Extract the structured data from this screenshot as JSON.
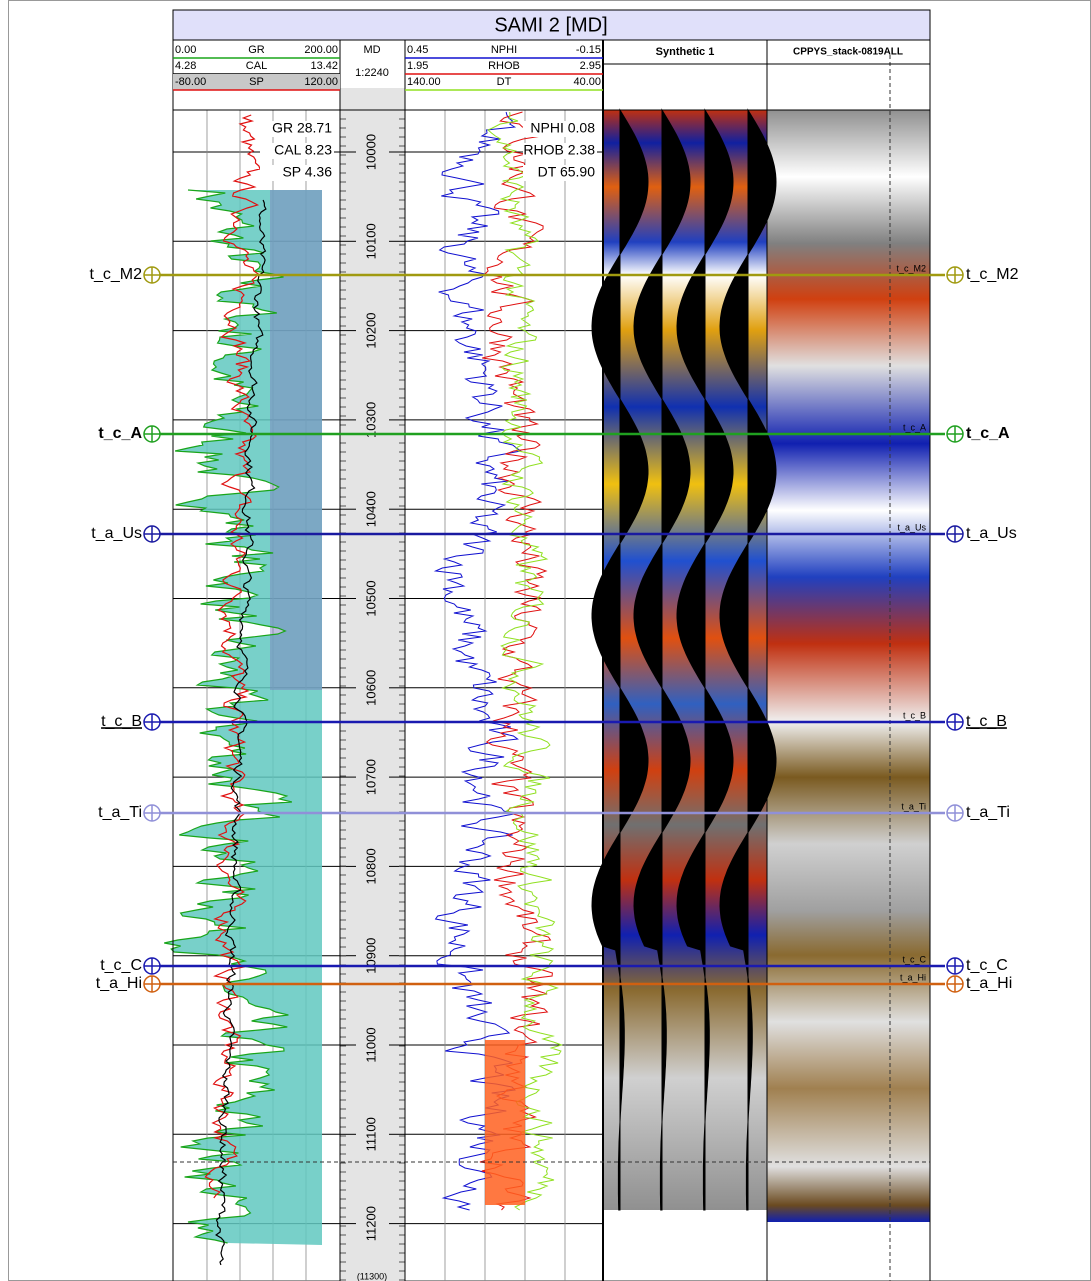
{
  "title": "SAMI 2 [MD]",
  "gr_track": {
    "curves": [
      {
        "min": "0.00",
        "name": "GR",
        "max": "200.00",
        "color": "#1aa51a"
      },
      {
        "min": "4.28",
        "name": "CAL",
        "max": "13.42",
        "color": "#000000"
      },
      {
        "min": "-80.00",
        "name": "SP",
        "max": "120.00",
        "color": "#e01010"
      }
    ],
    "readouts": [
      "GR 28.71",
      "CAL 8.23",
      "SP 4.36"
    ]
  },
  "md_track": {
    "name": "MD",
    "scale": "1:2240",
    "depths": [
      10000,
      10100,
      10200,
      10300,
      10400,
      10500,
      10600,
      10700,
      10800,
      10900,
      11000,
      11100,
      11200
    ],
    "footer": "(11300)"
  },
  "porosity_track": {
    "curves": [
      {
        "min": "0.45",
        "name": "NPHI",
        "max": "-0.15",
        "color": "#1010d0"
      },
      {
        "min": "1.95",
        "name": "RHOB",
        "max": "2.95",
        "color": "#e01010"
      },
      {
        "min": "140.00",
        "name": "DT",
        "max": "40.00",
        "color": "#90e020"
      }
    ],
    "readouts": [
      "NPHI 0.08",
      "RHOB 2.38",
      "DT 65.90"
    ]
  },
  "synthetic_track": {
    "name": "Synthetic 1"
  },
  "seismic_track": {
    "name": "CPPYS_stack-0819ALL"
  },
  "horizons": [
    {
      "name": "t_c_M2",
      "color": "#a09a10"
    },
    {
      "name": "t_c_A",
      "color": "#20a020"
    },
    {
      "name": "t_a_Us",
      "color": "#1a1aa0"
    },
    {
      "name": "t_c_B",
      "color": "#1a1ab0"
    },
    {
      "name": "t_a_Ti",
      "color": "#9090d8"
    },
    {
      "name": "t_c_C",
      "color": "#1a1ab0"
    },
    {
      "name": "t_a_Hi",
      "color": "#d06010"
    }
  ]
}
